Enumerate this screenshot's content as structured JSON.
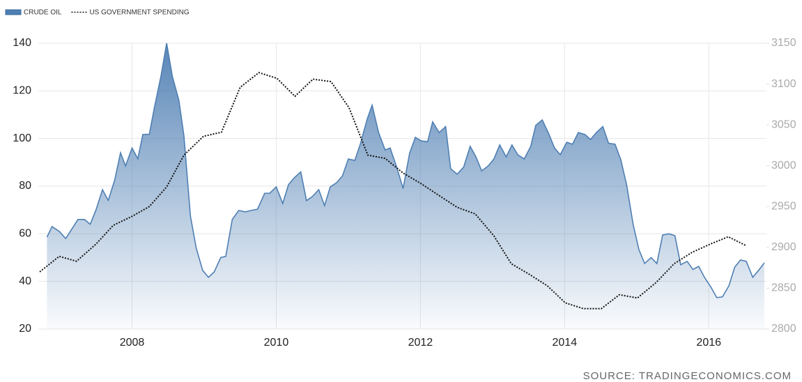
{
  "chart_data": {
    "type": "area-line",
    "source": "SOURCE: TRADINGECONOMICS.COM",
    "xlim": [
      2006.7,
      2016.8
    ],
    "xticks": [
      2008,
      2010,
      2012,
      2014,
      2016
    ],
    "ylim": [
      20,
      140
    ],
    "yticks": [
      20,
      40,
      60,
      80,
      100,
      120,
      140
    ],
    "y2lim": [
      2800,
      3150
    ],
    "y2ticks": [
      2800,
      2850,
      2900,
      2950,
      3000,
      3050,
      3100,
      3150
    ],
    "grid": true,
    "legend": "top-left",
    "series": [
      {
        "name": "CRUDE OIL",
        "color": "#4f7fb3",
        "type": "area",
        "x": [
          2006.82,
          2006.89,
          2006.99,
          2007.08,
          2007.25,
          2007.34,
          2007.42,
          2007.5,
          2007.59,
          2007.67,
          2007.76,
          2007.84,
          2007.91,
          2008.0,
          2008.08,
          2008.15,
          2008.24,
          2008.31,
          2008.4,
          2008.48,
          2008.56,
          2008.65,
          2008.72,
          2008.81,
          2008.89,
          2008.98,
          2009.06,
          2009.14,
          2009.23,
          2009.3,
          2009.39,
          2009.48,
          2009.57,
          2009.65,
          2009.74,
          2009.84,
          2009.91,
          2010.0,
          2010.09,
          2010.17,
          2010.25,
          2010.34,
          2010.42,
          2010.5,
          2010.59,
          2010.67,
          2010.75,
          2010.84,
          2010.92,
          2011.0,
          2011.09,
          2011.17,
          2011.26,
          2011.33,
          2011.42,
          2011.51,
          2011.58,
          2011.67,
          2011.76,
          2011.85,
          2011.93,
          2012.01,
          2012.1,
          2012.17,
          2012.26,
          2012.35,
          2012.42,
          2012.51,
          2012.6,
          2012.69,
          2012.77,
          2012.85,
          2012.94,
          2013.02,
          2013.1,
          2013.19,
          2013.27,
          2013.35,
          2013.44,
          2013.53,
          2013.6,
          2013.69,
          2013.78,
          2013.86,
          2013.94,
          2014.03,
          2014.11,
          2014.19,
          2014.28,
          2014.36,
          2014.44,
          2014.53,
          2014.61,
          2014.7,
          2014.78,
          2014.86,
          2014.95,
          2015.03,
          2015.11,
          2015.2,
          2015.28,
          2015.36,
          2015.45,
          2015.53,
          2015.61,
          2015.7,
          2015.78,
          2015.86,
          2015.94,
          2016.03,
          2016.11,
          2016.19,
          2016.28,
          2016.36,
          2016.44,
          2016.52,
          2016.61,
          2016.69,
          2016.77
        ],
        "values": [
          58.6,
          63,
          61,
          58,
          66,
          66,
          64,
          70,
          78.5,
          74,
          82.6,
          94,
          88.5,
          96,
          91.5,
          101.7,
          101.8,
          113,
          126,
          140,
          126,
          116,
          101,
          67.4,
          54,
          44.6,
          41.7,
          44,
          50,
          50.5,
          66,
          69.8,
          69.2,
          69.8,
          70.3,
          77,
          77,
          79.7,
          72.7,
          80.6,
          83.5,
          86,
          73.9,
          75.6,
          78.5,
          71.8,
          79.7,
          81.5,
          84.4,
          91.4,
          90.8,
          98,
          108,
          114,
          102.5,
          95.2,
          96,
          88,
          79,
          93.8,
          100.5,
          99,
          98.7,
          107,
          102.5,
          105,
          87.3,
          85,
          88,
          96.7,
          92.3,
          86.4,
          88.5,
          91.4,
          97.3,
          92.3,
          97.3,
          93.2,
          91.4,
          96.7,
          105.5,
          107.8,
          102,
          96,
          93.2,
          98.4,
          97.6,
          102.5,
          101.7,
          99.6,
          102.5,
          105,
          98,
          97.6,
          91,
          80.6,
          64,
          53.4,
          47.5,
          50,
          47.5,
          59.5,
          60,
          59.2,
          47,
          48.4,
          45,
          46.3,
          41.7,
          37.6,
          33.2,
          33.5,
          38.2,
          46,
          49,
          48.4,
          41.7,
          44.6,
          47.8
        ]
      },
      {
        "name": "US GOVERNMENT SPENDING",
        "color": "#111111",
        "type": "line",
        "axis": "y2",
        "dashed": true,
        "x": [
          2006.72,
          2006.99,
          2007.23,
          2007.5,
          2007.74,
          2008.0,
          2008.24,
          2008.48,
          2008.72,
          2008.99,
          2009.24,
          2009.5,
          2009.76,
          2010.01,
          2010.26,
          2010.51,
          2010.76,
          2011.01,
          2011.27,
          2011.51,
          2011.76,
          2012.01,
          2012.25,
          2012.51,
          2012.76,
          2013.02,
          2013.26,
          2013.51,
          2013.76,
          2014.01,
          2014.26,
          2014.51,
          2014.76,
          2015.01,
          2015.27,
          2015.52,
          2015.77,
          2016.02,
          2016.27,
          2016.52
        ],
        "values": [
          2870,
          2889,
          2883,
          2904,
          2927,
          2938,
          2950,
          2974,
          3013,
          3036,
          3041,
          3096,
          3114,
          3107,
          3085,
          3106,
          3103,
          3071,
          3013,
          3009,
          2991,
          2978,
          2964,
          2949,
          2941,
          2914,
          2880,
          2867,
          2853,
          2832,
          2825,
          2825,
          2842,
          2838,
          2857,
          2880,
          2894,
          2904,
          2913,
          2902
        ]
      }
    ]
  }
}
